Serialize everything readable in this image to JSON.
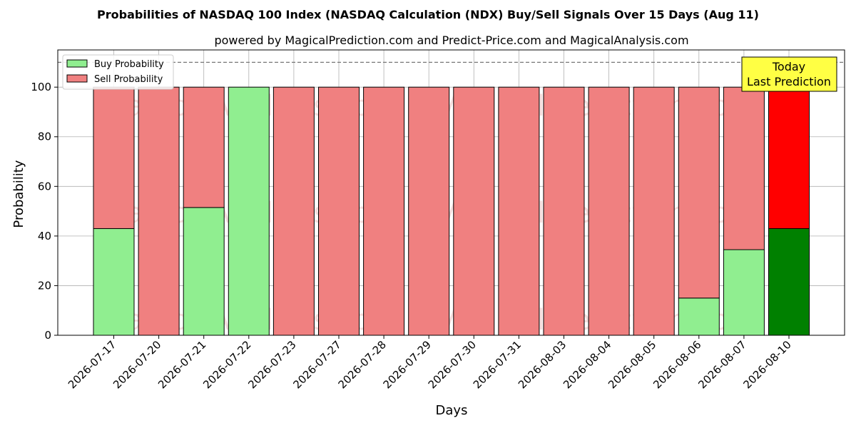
{
  "chart_data": {
    "type": "bar",
    "stacked": true,
    "title": "Probabilities of NASDAQ 100 Index (NASDAQ Calculation (NDX) Buy/Sell Signals Over 15 Days (Aug 11)",
    "subtitle": "powered by MagicalPrediction.com and Predict-Price.com and MagicalAnalysis.com",
    "xlabel": "Days",
    "ylabel": "Probability",
    "ylim": [
      0,
      115
    ],
    "yticks": [
      0,
      20,
      40,
      60,
      80,
      100
    ],
    "reference_line": 110,
    "grid": true,
    "legend_placement": "top-left",
    "categories": [
      "2026-07-17",
      "2026-07-20",
      "2026-07-21",
      "2026-07-22",
      "2026-07-23",
      "2026-07-27",
      "2026-07-28",
      "2026-07-29",
      "2026-07-30",
      "2026-07-31",
      "2026-08-03",
      "2026-08-04",
      "2026-08-05",
      "2026-08-06",
      "2026-08-07",
      "2026-08-10"
    ],
    "series": [
      {
        "name": "Buy Probability",
        "color": "#90ee90",
        "highlight_color": "#008000",
        "values": [
          43,
          0,
          51.5,
          100,
          0,
          0,
          0,
          0,
          0,
          0,
          0,
          0,
          0,
          15,
          34.5,
          43
        ]
      },
      {
        "name": "Sell Probability",
        "color": "#f08080",
        "highlight_color": "#ff0000",
        "values": [
          57,
          100,
          48.5,
          0,
          100,
          100,
          100,
          100,
          100,
          100,
          100,
          100,
          100,
          85,
          65.5,
          57
        ]
      }
    ],
    "highlight_index": 15,
    "annotation": {
      "line1": "Today",
      "line2": "Last Prediction",
      "color": "#ffff44"
    },
    "watermarks": [
      "MagicalAnalysis.com",
      "MagicalPrediction.com"
    ]
  }
}
